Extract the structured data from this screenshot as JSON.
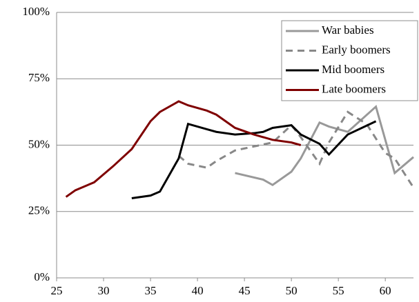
{
  "chart_data": {
    "type": "line",
    "xlim": [
      25,
      63
    ],
    "xticks": [
      25,
      30,
      35,
      40,
      45,
      50,
      55,
      60
    ],
    "ylim": [
      0,
      100
    ],
    "yticks": [
      {
        "value": 0,
        "label": "0%"
      },
      {
        "value": 25,
        "label": "25%"
      },
      {
        "value": 50,
        "label": "50%"
      },
      {
        "value": 75,
        "label": "75%"
      },
      {
        "value": 100,
        "label": "100%"
      }
    ],
    "grid": true,
    "legend": "upper right",
    "series": [
      {
        "name": "War babies",
        "color": "#999999",
        "line_style": "solid",
        "x": [
          44,
          47,
          48,
          50,
          51,
          53,
          54,
          56,
          59,
          61,
          63
        ],
        "values": [
          39.5,
          37,
          35,
          40,
          45,
          58.5,
          57,
          55,
          64.5,
          39.5,
          45.5
        ]
      },
      {
        "name": "Early boomers",
        "color": "#888888",
        "line_style": "dashed",
        "x": [
          38,
          39,
          41,
          42,
          44,
          46,
          48,
          50,
          51,
          53,
          54,
          56,
          58,
          60,
          61,
          63
        ],
        "values": [
          46,
          43,
          41.5,
          44,
          48,
          49.5,
          51,
          57.5,
          53,
          43,
          51,
          62.5,
          58,
          47,
          45,
          34
        ]
      },
      {
        "name": "Mid boomers",
        "color": "#000000",
        "line_style": "solid",
        "x": [
          33,
          35,
          36,
          38,
          39,
          41,
          42,
          44,
          46,
          47,
          48,
          50,
          51,
          53,
          54,
          56,
          59
        ],
        "values": [
          30,
          31,
          32.5,
          45,
          58,
          56,
          55,
          54,
          54.5,
          55,
          56.5,
          57.5,
          54,
          50.5,
          46.5,
          54,
          59
        ]
      },
      {
        "name": "Late boomers",
        "color": "#7f0000",
        "line_style": "solid",
        "x": [
          26,
          27,
          29,
          31,
          33,
          35,
          36,
          38,
          39,
          41,
          42,
          44,
          46,
          48,
          50,
          51
        ],
        "values": [
          30.5,
          33,
          36,
          42,
          48.5,
          59,
          62.5,
          66.5,
          65,
          63,
          61.5,
          56.5,
          54,
          52,
          51,
          50
        ]
      }
    ]
  }
}
